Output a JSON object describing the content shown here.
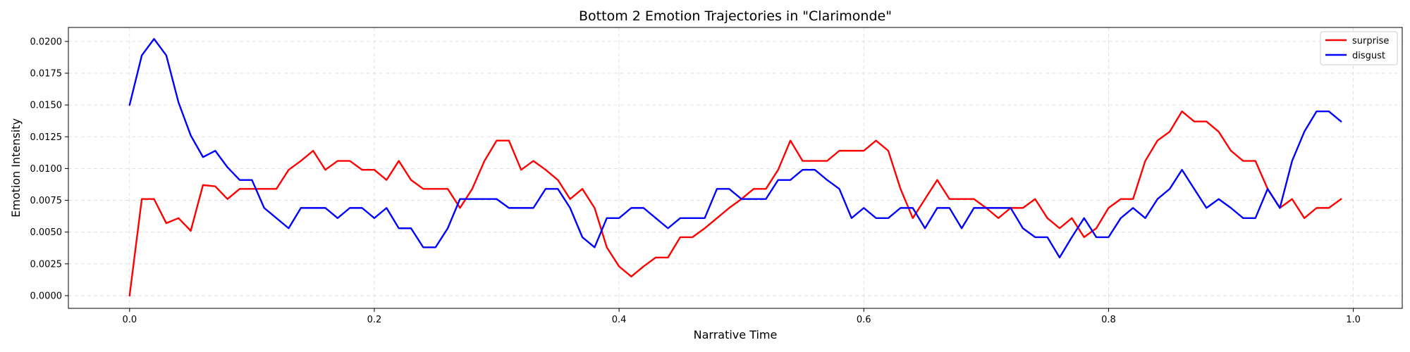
{
  "chart_data": {
    "type": "line",
    "title": "Bottom 2 Emotion Trajectories in \"Clarimonde\"",
    "xlabel": "Narrative Time",
    "ylabel": "Emotion Intensity",
    "xlim": [
      -0.05,
      1.04
    ],
    "ylim": [
      -0.001,
      0.0211
    ],
    "grid": true,
    "legend_position": "top-right",
    "x_ticks": [
      0.0,
      0.2,
      0.4,
      0.6,
      0.8,
      1.0
    ],
    "x_tick_labels": [
      "0.0",
      "0.2",
      "0.4",
      "0.6",
      "0.8",
      "1.0"
    ],
    "y_ticks": [
      0.0,
      0.0025,
      0.005,
      0.0075,
      0.01,
      0.0125,
      0.015,
      0.0175,
      0.02
    ],
    "y_tick_labels": [
      "0.0000",
      "0.0025",
      "0.0050",
      "0.0075",
      "0.0100",
      "0.0125",
      "0.0150",
      "0.0175",
      "0.0200"
    ],
    "x": [
      0.0,
      0.01,
      0.02,
      0.03,
      0.04,
      0.05,
      0.06,
      0.07,
      0.08,
      0.09,
      0.1,
      0.11,
      0.12,
      0.13,
      0.14,
      0.15,
      0.16,
      0.17,
      0.18,
      0.19,
      0.2,
      0.21,
      0.22,
      0.23,
      0.24,
      0.25,
      0.26,
      0.27,
      0.28,
      0.29,
      0.3,
      0.31,
      0.32,
      0.33,
      0.34,
      0.35,
      0.36,
      0.37,
      0.38,
      0.39,
      0.4,
      0.41,
      0.42,
      0.43,
      0.44,
      0.45,
      0.46,
      0.47,
      0.48,
      0.49,
      0.5,
      0.51,
      0.52,
      0.53,
      0.54,
      0.55,
      0.56,
      0.57,
      0.58,
      0.59,
      0.6,
      0.61,
      0.62,
      0.63,
      0.64,
      0.65,
      0.66,
      0.67,
      0.68,
      0.69,
      0.7,
      0.71,
      0.72,
      0.73,
      0.74,
      0.75,
      0.76,
      0.77,
      0.78,
      0.79,
      0.8,
      0.81,
      0.82,
      0.83,
      0.84,
      0.85,
      0.86,
      0.87,
      0.88,
      0.89,
      0.9,
      0.91,
      0.92,
      0.93,
      0.94,
      0.95,
      0.96,
      0.97,
      0.98,
      0.99
    ],
    "series": [
      {
        "name": "surprise",
        "color": "#ff0000",
        "values": [
          0.0,
          0.0076,
          0.0076,
          0.0057,
          0.0061,
          0.0051,
          0.0087,
          0.0086,
          0.0076,
          0.0084,
          0.0084,
          0.0084,
          0.0084,
          0.0099,
          0.0106,
          0.0114,
          0.0099,
          0.0106,
          0.0106,
          0.0099,
          0.0099,
          0.0091,
          0.0106,
          0.0091,
          0.0084,
          0.0084,
          0.0084,
          0.0069,
          0.0084,
          0.0106,
          0.0122,
          0.0122,
          0.0099,
          0.0106,
          0.0099,
          0.0091,
          0.0076,
          0.0084,
          0.0069,
          0.0038,
          0.0023,
          0.0015,
          0.0023,
          0.003,
          0.003,
          0.0046,
          0.0046,
          0.0053,
          0.0061,
          0.0069,
          0.0076,
          0.0084,
          0.0084,
          0.0099,
          0.0122,
          0.0106,
          0.0106,
          0.0106,
          0.0114,
          0.0114,
          0.0114,
          0.0122,
          0.0114,
          0.0084,
          0.0061,
          0.0076,
          0.0091,
          0.0076,
          0.0076,
          0.0076,
          0.0069,
          0.0061,
          0.0069,
          0.0069,
          0.0076,
          0.0061,
          0.0053,
          0.0061,
          0.0046,
          0.0053,
          0.0069,
          0.0076,
          0.0076,
          0.0106,
          0.0122,
          0.0129,
          0.0145,
          0.0137,
          0.0137,
          0.0129,
          0.0114,
          0.0106,
          0.0106,
          0.0084,
          0.0069,
          0.0076,
          0.0061,
          0.0069,
          0.0069,
          0.0076
        ]
      },
      {
        "name": "disgust",
        "color": "#0000ff",
        "values": [
          0.015,
          0.0189,
          0.0202,
          0.0189,
          0.0152,
          0.0126,
          0.0109,
          0.0114,
          0.0101,
          0.0091,
          0.0091,
          0.0069,
          0.0061,
          0.0053,
          0.0069,
          0.0069,
          0.0069,
          0.0061,
          0.0069,
          0.0069,
          0.0061,
          0.0069,
          0.0053,
          0.0053,
          0.0038,
          0.0038,
          0.0053,
          0.0076,
          0.0076,
          0.0076,
          0.0076,
          0.0069,
          0.0069,
          0.0069,
          0.0084,
          0.0084,
          0.0069,
          0.0046,
          0.0038,
          0.0061,
          0.0061,
          0.0069,
          0.0069,
          0.0061,
          0.0053,
          0.0061,
          0.0061,
          0.0061,
          0.0084,
          0.0084,
          0.0076,
          0.0076,
          0.0076,
          0.0091,
          0.0091,
          0.0099,
          0.0099,
          0.0091,
          0.0084,
          0.0061,
          0.0069,
          0.0061,
          0.0061,
          0.0069,
          0.0069,
          0.0053,
          0.0069,
          0.0069,
          0.0053,
          0.0069,
          0.0069,
          0.0069,
          0.0069,
          0.0053,
          0.0046,
          0.0046,
          0.003,
          0.0046,
          0.0061,
          0.0046,
          0.0046,
          0.0061,
          0.0069,
          0.0061,
          0.0076,
          0.0084,
          0.0099,
          0.0084,
          0.0069,
          0.0076,
          0.0069,
          0.0061,
          0.0061,
          0.0084,
          0.0069,
          0.0106,
          0.0129,
          0.0145,
          0.0145,
          0.0137
        ]
      }
    ]
  }
}
